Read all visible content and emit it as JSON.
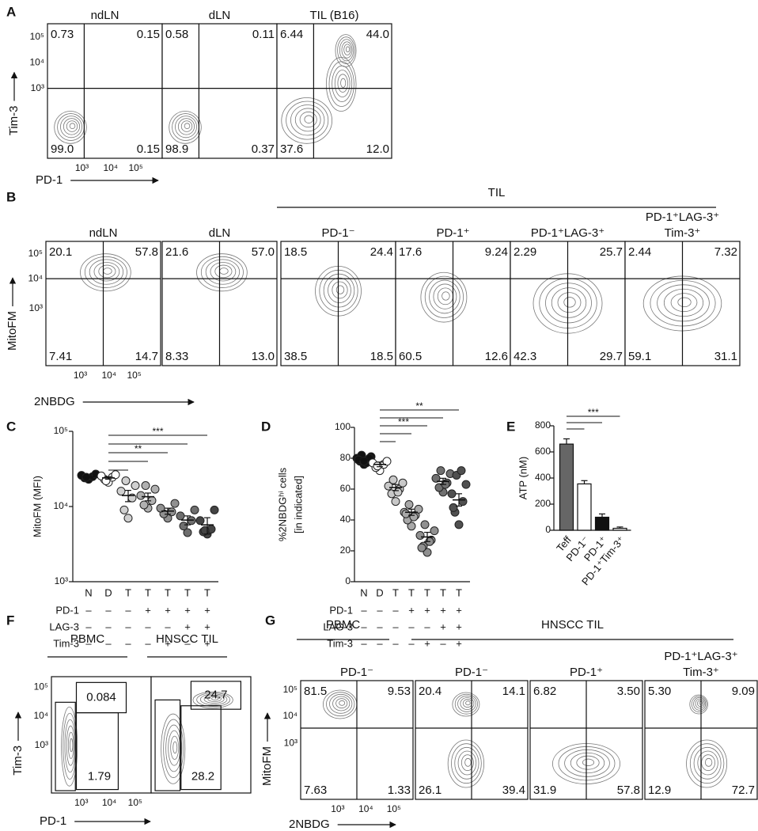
{
  "figure": {
    "flow_panels": [
      {
        "letter": "A",
        "y_label": "Tim-3",
        "x_label": "PD-1",
        "y_ticks": [
          "10⁵",
          "10⁴",
          "10³"
        ],
        "x_ticks": [
          "10³",
          "10⁴",
          "10⁵"
        ],
        "group_labels": [],
        "plots": [
          {
            "title": [
              "ndLN"
            ],
            "quadrants": [
              "0.73",
              "0.15",
              "99.0",
              "0.15"
            ]
          },
          {
            "title": [
              "dLN"
            ],
            "quadrants": [
              "0.58",
              "0.11",
              "98.9",
              "0.37"
            ]
          },
          {
            "title": [
              "TIL (B16)"
            ],
            "quadrants": [
              "6.44",
              "44.0",
              "37.6",
              "12.0"
            ]
          }
        ]
      },
      {
        "letter": "B",
        "y_label": "MitoFM",
        "x_label": "2NBDG",
        "y_ticks": [
          "10⁵",
          "10⁴",
          "10³"
        ],
        "x_ticks": [
          "10³",
          "10⁴",
          "10⁵"
        ],
        "group_labels": [
          "TIL"
        ],
        "plots": [
          {
            "title": [
              "ndLN"
            ],
            "quadrants": [
              "20.1",
              "57.8",
              "7.41",
              "14.7"
            ]
          },
          {
            "title": [
              "dLN"
            ],
            "quadrants": [
              "21.6",
              "57.0",
              "8.33",
              "13.0"
            ]
          },
          {
            "title": [
              "PD-1⁻"
            ],
            "quadrants": [
              "18.5",
              "24.4",
              "38.5",
              "18.5"
            ]
          },
          {
            "title": [
              "PD-1⁺"
            ],
            "quadrants": [
              "17.6",
              "9.24",
              "60.5",
              "12.6"
            ]
          },
          {
            "title": [
              "PD-1⁺LAG-3⁺"
            ],
            "quadrants": [
              "2.29",
              "25.7",
              "42.3",
              "29.7"
            ]
          },
          {
            "title": [
              "PD-1⁺LAG-3⁺",
              "Tim-3⁺"
            ],
            "quadrants": [
              "2.44",
              "7.32",
              "59.1",
              "31.1"
            ]
          }
        ]
      },
      {
        "letter": "F",
        "y_label": "Tim-3",
        "x_label": "PD-1",
        "y_ticks": [
          "10⁵",
          "10⁴",
          "10³"
        ],
        "x_ticks": [
          "10³",
          "10⁴",
          "10⁵"
        ],
        "group_labels": [
          "PBMC",
          "HNSCC TIL"
        ],
        "plots": [
          {
            "title": [],
            "gates": [
              "0.084",
              "1.79"
            ]
          },
          {
            "title": [],
            "gates": [
              "24.7",
              "28.2"
            ]
          }
        ]
      },
      {
        "letter": "G",
        "y_label": "MitoFM",
        "x_label": "2NBDG",
        "y_ticks": [
          "10⁵",
          "10⁴",
          "10³"
        ],
        "x_ticks": [
          "10³",
          "10⁴",
          "10⁵"
        ],
        "group_labels": [
          "PBMC",
          "HNSCC TIL"
        ],
        "plots": [
          {
            "title": [
              "PD-1⁻"
            ],
            "quadrants": [
              "81.5",
              "9.53",
              "7.63",
              "1.33"
            ]
          },
          {
            "title": [
              "PD-1⁻"
            ],
            "quadrants": [
              "20.4",
              "14.1",
              "26.1",
              "39.4"
            ]
          },
          {
            "title": [
              "PD-1⁺"
            ],
            "quadrants": [
              "6.82",
              "3.50",
              "31.9",
              "57.8"
            ]
          },
          {
            "title": [
              "PD-1⁺LAG-3⁺",
              "Tim-3⁺"
            ],
            "quadrants": [
              "5.30",
              "9.09",
              "12.9",
              "72.7"
            ]
          }
        ]
      }
    ]
  },
  "chart_data": [
    {
      "letter": "C",
      "type": "dot",
      "y_label": [
        "MitoFM (MFI)"
      ],
      "log_y": true,
      "ylim": [
        1000,
        100000
      ],
      "yticks": [
        {
          "value": 1000,
          "label": "10³"
        },
        {
          "value": 10000,
          "label": "10⁴"
        },
        {
          "value": 100000,
          "label": "10⁵"
        }
      ],
      "categories": [
        "N",
        "D",
        "T",
        "T",
        "T",
        "T",
        "T"
      ],
      "conditions": [
        {
          "name": "PD-1",
          "marks": [
            "–",
            "–",
            "–",
            "+",
            "+",
            "+",
            "+"
          ]
        },
        {
          "name": "LAG-3",
          "marks": [
            "–",
            "–",
            "–",
            "–",
            "–",
            "+",
            "+"
          ]
        },
        {
          "name": "Tim-3",
          "marks": [
            "–",
            "–",
            "–",
            "–",
            "+",
            "–",
            "+"
          ]
        }
      ],
      "points": [
        [
          23000,
          24000,
          25000,
          26000,
          27000,
          24500
        ],
        [
          21000,
          23000,
          24500,
          25500,
          26500,
          22000
        ],
        [
          7000,
          9000,
          13000,
          16000,
          19000,
          22000
        ],
        [
          9500,
          10500,
          12000,
          14000,
          17000,
          19000
        ],
        [
          7000,
          8000,
          8500,
          9500,
          11000
        ],
        [
          4500,
          5500,
          6500,
          7500,
          9000
        ],
        [
          4300,
          4600,
          5000,
          6500,
          9000,
          4800
        ]
      ],
      "means": [
        24800,
        24000,
        14000,
        13500,
        8700,
        6600,
        5700
      ],
      "errors": [
        800,
        900,
        2400,
        1600,
        800,
        900,
        1400
      ],
      "colors": [
        "#111111",
        "#ffffff",
        "#d0d0d0",
        "#b0b0b0",
        "#909090",
        "#6e6e6e",
        "#444444"
      ],
      "significance_labels": [
        "***",
        "**"
      ]
    },
    {
      "letter": "D",
      "type": "dot",
      "y_label": [
        "%2NBDGʰⁱ cells",
        "[in indicated]"
      ],
      "log_y": false,
      "ylim": [
        0,
        100
      ],
      "yticks": [
        0,
        20,
        40,
        60,
        80,
        100
      ],
      "categories": [
        "N",
        "D",
        "T",
        "T",
        "T",
        "T",
        "T"
      ],
      "conditions": [
        {
          "name": "PD-1",
          "marks": [
            "–",
            "–",
            "–",
            "+",
            "+",
            "+",
            "+"
          ]
        },
        {
          "name": "LAG-3",
          "marks": [
            "–",
            "–",
            "–",
            "–",
            "–",
            "+",
            "+"
          ]
        },
        {
          "name": "Tim-3",
          "marks": [
            "–",
            "–",
            "–",
            "–",
            "+",
            "–",
            "+"
          ]
        }
      ],
      "points": [
        [
          76,
          78,
          79,
          80,
          81,
          82,
          77,
          79,
          80,
          78
        ],
        [
          72,
          74,
          76,
          77,
          78,
          75
        ],
        [
          52,
          57,
          60,
          62,
          64,
          66,
          58
        ],
        [
          36,
          40,
          43,
          45,
          47,
          50,
          42,
          44
        ],
        [
          19,
          23,
          27,
          30,
          33,
          37,
          26,
          22
        ],
        [
          58,
          61,
          64,
          67,
          70,
          72,
          63
        ],
        [
          37,
          45,
          52,
          57,
          63,
          69,
          72,
          48
        ]
      ],
      "means": [
        79,
        76,
        61,
        45,
        29,
        65,
        53
      ],
      "errors": [
        1,
        1.5,
        2,
        2,
        3,
        2,
        4
      ],
      "colors": [
        "#111111",
        "#ffffff",
        "#c8c8c8",
        "#a8a8a8",
        "#909090",
        "#707070",
        "#505050"
      ],
      "significance_labels": [
        "**",
        "***"
      ]
    },
    {
      "letter": "E",
      "type": "bar",
      "y_label": [
        "ATP (nM)"
      ],
      "log_y": false,
      "ylim": [
        0,
        800
      ],
      "yticks": [
        0,
        200,
        400,
        600,
        800
      ],
      "categories": [
        "Teff",
        "PD-1⁻",
        "PD-1⁺",
        "PD-1⁺Tim-3⁺"
      ],
      "values": [
        660,
        355,
        100,
        15
      ],
      "errors": [
        40,
        25,
        25,
        10
      ],
      "colors": [
        "#666666",
        "#ffffff",
        "#111111",
        "#ffffff"
      ],
      "significance_labels": [
        "***"
      ]
    }
  ]
}
